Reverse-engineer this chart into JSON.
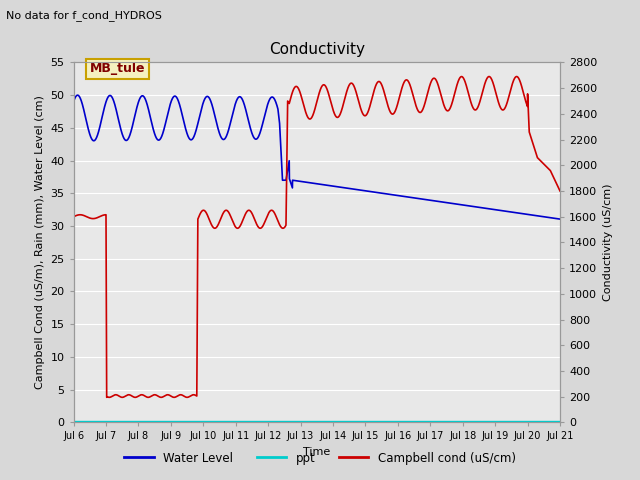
{
  "title": "Conductivity",
  "top_left_text": "No data for f_cond_HYDROS",
  "xlabel": "Time",
  "ylabel_left": "Campbell Cond (uS/m), Rain (mm), Water Level (cm)",
  "ylabel_right": "Conductivity (uS/cm)",
  "ylim_left": [
    0,
    55
  ],
  "ylim_right": [
    0,
    2800
  ],
  "yticks_left": [
    0,
    5,
    10,
    15,
    20,
    25,
    30,
    35,
    40,
    45,
    50,
    55
  ],
  "yticks_right": [
    0,
    200,
    400,
    600,
    800,
    1000,
    1200,
    1400,
    1600,
    1800,
    2000,
    2200,
    2400,
    2600,
    2800
  ],
  "xtick_labels": [
    "Jul 6",
    "Jul 7",
    "Jul 8",
    "Jul 9",
    "Jul 10",
    "Jul 11",
    "Jul 12",
    "Jul 13",
    "Jul 14",
    "Jul 15",
    "Jul 16",
    "Jul 17",
    "Jul 18",
    "Jul 19",
    "Jul 20",
    "Jul 21"
  ],
  "fig_bg": "#d8d8d8",
  "plot_bg": "#e8e8e8",
  "grid_color": "#ffffff",
  "ann_text": "MB_tule",
  "ann_bg": "#f5f0c0",
  "ann_edge": "#c8a000",
  "ann_color": "#800000",
  "water_color": "#0000cc",
  "ppt_color": "#00cccc",
  "cond_color": "#cc0000",
  "legend_entries": [
    "Water Level",
    "ppt",
    "Campbell cond (uS/cm)"
  ],
  "title_fontsize": 11,
  "label_fontsize": 8,
  "tick_fontsize": 8
}
